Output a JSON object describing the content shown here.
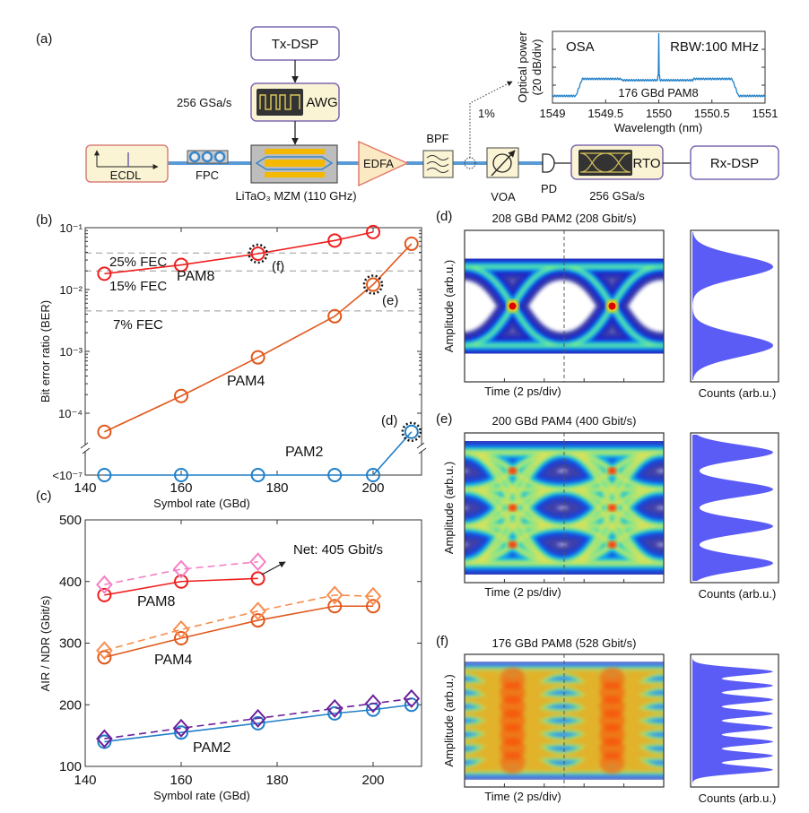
{
  "panel_labels": {
    "a": "(a)",
    "b": "(b)",
    "c": "(c)",
    "d": "(d)",
    "e": "(e)",
    "f": "(f)"
  },
  "setup": {
    "tx_dsp": "Tx-DSP",
    "awg": "AWG",
    "awg_rate": "256 GSa/s",
    "ecdl": "ECDL",
    "fpc": "FPC",
    "mzm": "LiTaO₃ MZM (110 GHz)",
    "edfa": "EDFA",
    "bpf": "BPF",
    "tap": "1%",
    "voa": "VOA",
    "pd": "PD",
    "rto": "RTO",
    "rto_rate": "256 GSa/s",
    "rx_dsp": "Rx-DSP"
  },
  "colors": {
    "pam8": "#f01e1e",
    "pam4": "#e0581c",
    "pam2": "#1f7fc8",
    "pam8_air": "#f57fc4",
    "pam4_air": "#f98c4c",
    "pam2_air": "#6b1f9a",
    "fiber": "#5b9bd5",
    "box_fill": "#fbf4d4",
    "box_stroke": "#7b68b0",
    "histogram": "#5b5bf5",
    "spectrum": "#1f7fc8"
  },
  "chart_data": [
    {
      "id": "osa",
      "type": "line",
      "title_left": "OSA",
      "title_right": "RBW:100 MHz",
      "annotation": "176 GBd PAM8",
      "xlabel": "Wavelength (nm)",
      "ylabel": [
        "Optical power",
        "(20 dB/div)"
      ],
      "xlim": [
        1549,
        1551
      ],
      "xticks": [
        "1549",
        "1549.5",
        "1550",
        "1550.5",
        "1551"
      ],
      "signal_band": [
        1549.25,
        1550.72
      ],
      "carrier": 1550
    },
    {
      "id": "ber",
      "type": "line",
      "ylabel": "Bit error ratio (BER)",
      "xlabel": "Symbol rate (GBd)",
      "xlim": [
        140,
        210
      ],
      "yscale": "log",
      "ylim": [
        1e-07,
        0.1
      ],
      "axis_break": true,
      "xticks": [
        140,
        160,
        180,
        200
      ],
      "yticks": [
        {
          "v": 0.1,
          "label": "10⁻¹"
        },
        {
          "v": 0.01,
          "label": "10⁻²"
        },
        {
          "v": 0.001,
          "label": "10⁻³"
        },
        {
          "v": 0.0001,
          "label": "10⁻⁴"
        },
        {
          "v": 1e-07,
          "label": "<10⁻⁷"
        }
      ],
      "thresholds": [
        {
          "label": "25% FEC",
          "value": 0.039
        },
        {
          "label": "15% FEC",
          "value": 0.02
        },
        {
          "label": "7% FEC",
          "value": 0.0045
        }
      ],
      "series": [
        {
          "name": "PAM8",
          "color": "#f01e1e",
          "x": [
            144,
            160,
            176,
            192,
            200
          ],
          "y": [
            0.018,
            0.025,
            0.038,
            0.062,
            0.085
          ]
        },
        {
          "name": "PAM4",
          "color": "#e0581c",
          "x": [
            144,
            160,
            176,
            192,
            200,
            208
          ],
          "y": [
            5e-05,
            0.00019,
            0.0008,
            0.0037,
            0.012,
            0.055
          ]
        },
        {
          "name": "PAM2",
          "color": "#1f7fc8",
          "x": [
            144,
            160,
            176,
            192,
            200,
            208
          ],
          "y": [
            1e-07,
            1e-07,
            1e-07,
            1e-07,
            1e-07,
            5e-05
          ]
        }
      ],
      "highlights": [
        {
          "label": "(f)",
          "series": "PAM8",
          "x": 176
        },
        {
          "label": "(e)",
          "series": "PAM4",
          "x": 200
        },
        {
          "label": "(d)",
          "series": "PAM2",
          "x": 208
        }
      ]
    },
    {
      "id": "air",
      "type": "line",
      "ylabel": "AIR / NDR (Gbit/s)",
      "xlabel": "Symbol rate (GBd)",
      "xlim": [
        140,
        210
      ],
      "ylim": [
        100,
        500
      ],
      "xticks": [
        140,
        160,
        180,
        200
      ],
      "yticks": [
        100,
        200,
        300,
        400,
        500
      ],
      "annotation": "Net: 405 Gbit/s",
      "series": [
        {
          "name": "PAM8",
          "metric": "NDR",
          "marker": "circle",
          "dash": false,
          "color": "#f01e1e",
          "x": [
            144,
            160,
            176
          ],
          "y": [
            378,
            400,
            405
          ]
        },
        {
          "metric": "AIR",
          "marker": "diamond",
          "dash": true,
          "color": "#f57fc4",
          "x": [
            144,
            160,
            176
          ],
          "y": [
            395,
            420,
            432
          ]
        },
        {
          "name": "PAM4",
          "metric": "NDR",
          "marker": "circle",
          "dash": false,
          "color": "#e0581c",
          "x": [
            144,
            160,
            176,
            192,
            200
          ],
          "y": [
            277,
            308,
            337,
            360,
            360
          ]
        },
        {
          "metric": "AIR",
          "marker": "diamond",
          "dash": true,
          "color": "#f98c4c",
          "x": [
            144,
            160,
            176,
            192,
            200
          ],
          "y": [
            288,
            322,
            352,
            378,
            376
          ]
        },
        {
          "name": "PAM2",
          "metric": "NDR",
          "marker": "circle",
          "dash": false,
          "color": "#1f7fc8",
          "x": [
            144,
            160,
            176,
            192,
            200,
            208
          ],
          "y": [
            140,
            155,
            170,
            186,
            192,
            200
          ]
        },
        {
          "metric": "AIR",
          "marker": "diamond",
          "dash": true,
          "color": "#6b1f9a",
          "x": [
            144,
            160,
            176,
            192,
            200,
            208
          ],
          "y": [
            145,
            162,
            178,
            194,
            202,
            210
          ]
        }
      ]
    },
    {
      "id": "eye_d",
      "type": "heatmap",
      "title": "208 GBd PAM2 (208 Gbit/s)",
      "title_color": "#1f7fc8",
      "levels": 2,
      "xlabel": "Time (2 ps/div)",
      "ylabel": "Amplitude (arb.u.)",
      "hist_label": "Counts (arb.u.)"
    },
    {
      "id": "eye_e",
      "type": "heatmap",
      "title": "200 GBd PAM4 (400 Gbit/s)",
      "title_color": "#e0581c",
      "levels": 4,
      "xlabel": "Time (2 ps/div)",
      "ylabel": "Amplitude (arb.u.)",
      "hist_label": "Counts (arb.u.)"
    },
    {
      "id": "eye_f",
      "type": "heatmap",
      "title": "176 GBd PAM8 (528 Gbit/s)",
      "title_color": "#f01e1e",
      "levels": 8,
      "xlabel": "Time (2 ps/div)",
      "ylabel": "Amplitude (arb.u.)",
      "hist_label": "Counts (arb.u.)"
    }
  ]
}
